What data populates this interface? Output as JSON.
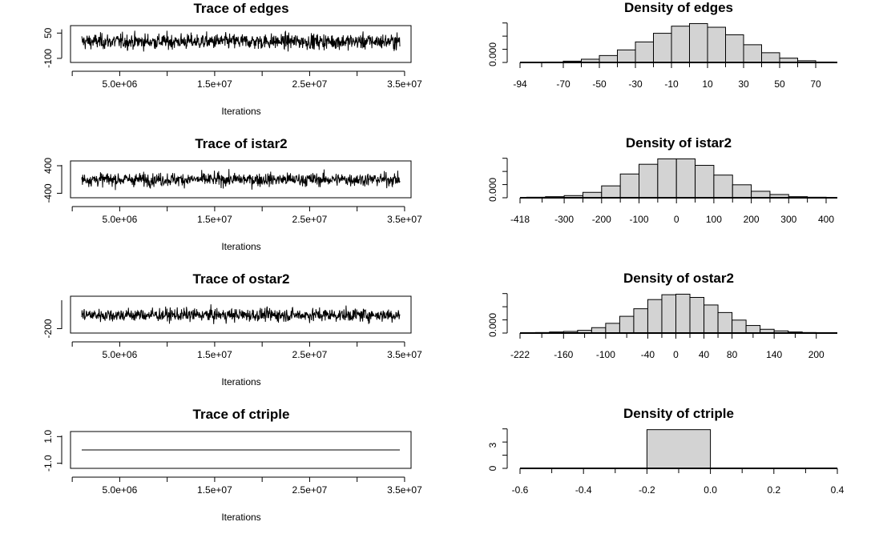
{
  "chart_data": [
    {
      "type": "line",
      "title": "Trace of edges",
      "xlabel": "Iterations",
      "ylabel": "",
      "x_ticks": [
        "5.0e+06",
        "1.5e+07",
        "2.5e+07",
        "3.5e+07"
      ],
      "x_tick_values": [
        5000000,
        15000000,
        25000000,
        35000000
      ],
      "xlim": [
        1000000,
        34500000
      ],
      "y_ticks": [
        "50",
        "-100"
      ],
      "y_tick_values": [
        50,
        -100
      ],
      "ylim": [
        -110,
        80
      ],
      "series_summary": {
        "center": 0,
        "spread": 55
      },
      "grid": false
    },
    {
      "type": "bar",
      "title": "Density of edges",
      "xlabel": "",
      "ylabel": "",
      "x_ticks": [
        "-94",
        "-70",
        "-50",
        "-30",
        "-10",
        "10",
        "30",
        "50",
        "70"
      ],
      "x_tick_values": [
        -94,
        -70,
        -50,
        -30,
        -10,
        10,
        30,
        50,
        70
      ],
      "xlim": [
        -94,
        82
      ],
      "y_ticks": [
        "0.000"
      ],
      "y_tick_values": [
        0
      ],
      "ylim": [
        0,
        0.0215
      ],
      "bin_edges": [
        -80,
        -70,
        -60,
        -50,
        -40,
        -30,
        -20,
        -10,
        0,
        10,
        20,
        30,
        40,
        50,
        60,
        70,
        80
      ],
      "densities": [
        0.0002,
        0.0006,
        0.0015,
        0.0032,
        0.0058,
        0.0095,
        0.0135,
        0.0168,
        0.018,
        0.0163,
        0.0128,
        0.0082,
        0.0045,
        0.002,
        0.0008,
        0.0002
      ],
      "grid": false
    },
    {
      "type": "line",
      "title": "Trace of istar2",
      "xlabel": "Iterations",
      "ylabel": "",
      "x_ticks": [
        "5.0e+06",
        "1.5e+07",
        "2.5e+07",
        "3.5e+07"
      ],
      "x_tick_values": [
        5000000,
        15000000,
        25000000,
        35000000
      ],
      "xlim": [
        1000000,
        34500000
      ],
      "y_ticks": [
        "400",
        "-400"
      ],
      "y_tick_values": [
        400,
        -400
      ],
      "ylim": [
        -460,
        470
      ],
      "series_summary": {
        "center": 0,
        "spread": 230
      },
      "grid": false
    },
    {
      "type": "bar",
      "title": "Density of istar2",
      "xlabel": "",
      "ylabel": "",
      "x_ticks": [
        "-418",
        "-300",
        "-200",
        "-100",
        "0",
        "100",
        "200",
        "300",
        "400"
      ],
      "x_tick_values": [
        -418,
        -300,
        -200,
        -100,
        0,
        100,
        200,
        300,
        400
      ],
      "xlim": [
        -418,
        430
      ],
      "y_ticks": [
        "0.000"
      ],
      "y_tick_values": [
        0
      ],
      "ylim": [
        0,
        0.0043
      ],
      "bin_edges": [
        -400,
        -350,
        -300,
        -250,
        -200,
        -150,
        -100,
        -50,
        0,
        50,
        100,
        150,
        200,
        250,
        300,
        350,
        400
      ],
      "densities": [
        5e-05,
        0.0001,
        0.0002,
        0.0005,
        0.0011,
        0.0022,
        0.0031,
        0.0036,
        0.0036,
        0.003,
        0.0021,
        0.0012,
        0.0006,
        0.0003,
        0.0001,
        5e-05
      ],
      "grid": false
    },
    {
      "type": "line",
      "title": "Trace of ostar2",
      "xlabel": "Iterations",
      "ylabel": "",
      "x_ticks": [
        "5.0e+06",
        "1.5e+07",
        "2.5e+07",
        "3.5e+07"
      ],
      "x_tick_values": [
        5000000,
        15000000,
        25000000,
        35000000
      ],
      "xlim": [
        1000000,
        34500000
      ],
      "y_ticks": [
        "-200"
      ],
      "y_tick_values": [
        -200
      ],
      "ylim": [
        -230,
        240
      ],
      "series_summary": {
        "center": 0,
        "spread": 115
      },
      "grid": false
    },
    {
      "type": "bar",
      "title": "Density of ostar2",
      "xlabel": "",
      "ylabel": "",
      "x_ticks": [
        "-222",
        "-160",
        "-100",
        "-40",
        "0",
        "40",
        "80",
        "140",
        "200"
      ],
      "x_tick_values": [
        -222,
        -160,
        -100,
        -40,
        0,
        40,
        80,
        140,
        200
      ],
      "xlim": [
        -222,
        230
      ],
      "y_ticks": [
        "0.000"
      ],
      "y_tick_values": [
        0
      ],
      "ylim": [
        0,
        0.0086
      ],
      "bin_edges": [
        -200,
        -180,
        -160,
        -140,
        -120,
        -100,
        -80,
        -60,
        -40,
        -20,
        0,
        20,
        40,
        60,
        80,
        100,
        120,
        140,
        160,
        180,
        200
      ],
      "densities": [
        0.0001,
        0.0002,
        0.0003,
        0.0005,
        0.001,
        0.0018,
        0.0031,
        0.0045,
        0.0062,
        0.0071,
        0.0072,
        0.0066,
        0.0052,
        0.0038,
        0.0024,
        0.0014,
        0.0007,
        0.0004,
        0.0002,
        0.0001
      ],
      "grid": false
    },
    {
      "type": "line",
      "title": "Trace of ctriple",
      "xlabel": "Iterations",
      "ylabel": "",
      "x_ticks": [
        "5.0e+06",
        "1.5e+07",
        "2.5e+07",
        "3.5e+07"
      ],
      "x_tick_values": [
        5000000,
        15000000,
        25000000,
        35000000
      ],
      "xlim": [
        1000000,
        34500000
      ],
      "y_ticks": [
        "1.0",
        "-1.0"
      ],
      "y_tick_values": [
        1,
        -1
      ],
      "ylim": [
        -1.2,
        1.2
      ],
      "x": [
        1000000,
        34500000
      ],
      "y": [
        0,
        0
      ],
      "grid": false
    },
    {
      "type": "bar",
      "title": "Density of ctriple",
      "xlabel": "",
      "ylabel": "",
      "x_ticks": [
        "-0.6",
        "-0.4",
        "-0.2",
        "0.0",
        "0.2",
        "0.4"
      ],
      "x_tick_values": [
        -0.6,
        -0.4,
        -0.2,
        0,
        0.2,
        0.4
      ],
      "xlim": [
        -0.6,
        0.4
      ],
      "y_ticks": [
        "0",
        "3"
      ],
      "y_tick_values": [
        0,
        3
      ],
      "ylim": [
        0,
        6.0
      ],
      "bin_edges": [
        -0.2,
        0
      ],
      "densities": [
        5.0
      ],
      "grid": false
    }
  ]
}
